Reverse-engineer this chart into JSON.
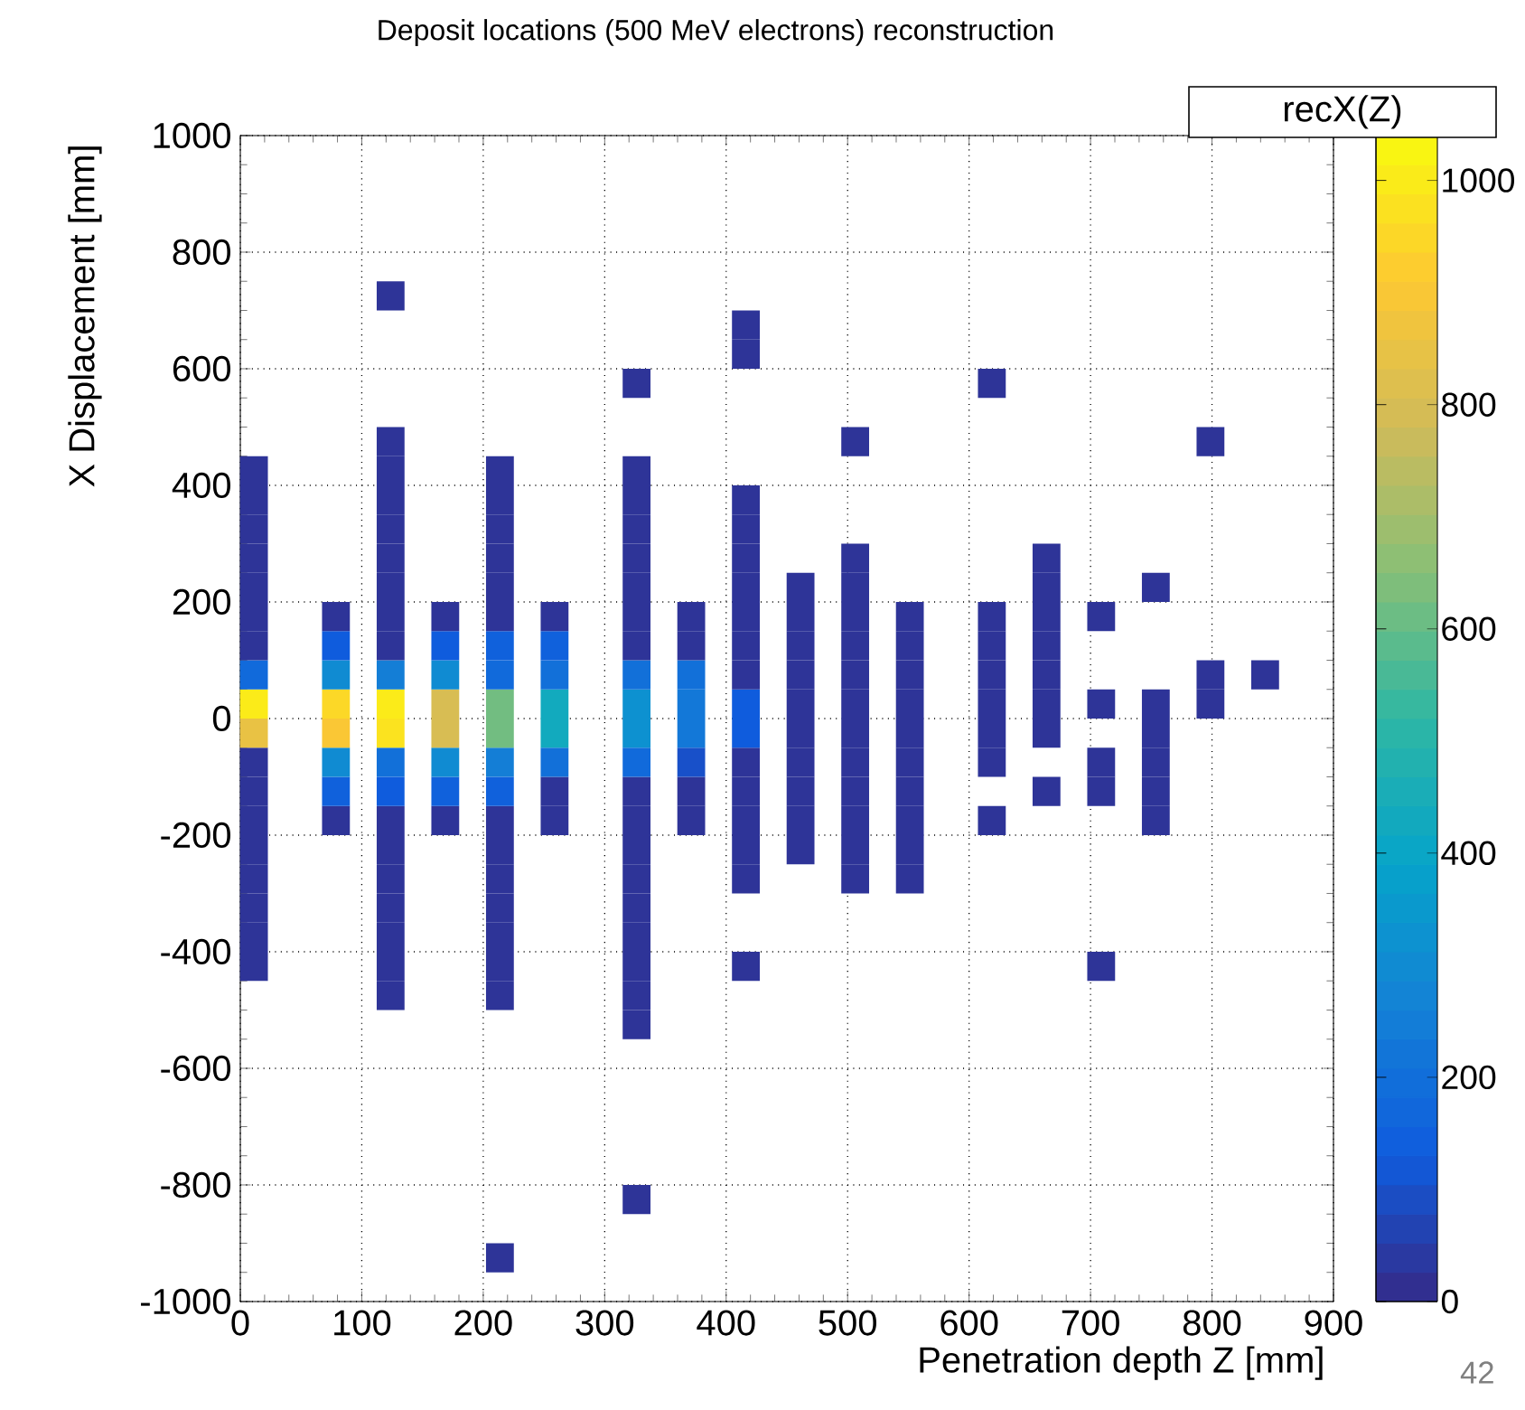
{
  "chart_data": {
    "type": "scatter",
    "title": "Deposit locations (500 MeV electrons) reconstruction",
    "xlabel": "Penetration depth Z [mm]",
    "ylabel": "X Displacement [mm]",
    "xlim": [
      0,
      900
    ],
    "xticks": [
      0,
      100,
      200,
      300,
      400,
      500,
      600,
      700,
      800,
      900
    ],
    "ylim": [
      -1000,
      1000
    ],
    "yticks": [
      -1000,
      -800,
      -600,
      -400,
      -200,
      0,
      200,
      400,
      600,
      800,
      1000
    ],
    "clim": [
      0,
      1040
    ],
    "cticks": [
      0,
      200,
      400,
      600,
      800,
      1000
    ],
    "grid": true,
    "marker": "square",
    "annotations": [
      "recX(Z)",
      "42"
    ],
    "x": [
      11.25,
      11.25,
      11.25,
      11.25,
      11.25,
      11.25,
      11.25,
      11.25,
      11.25,
      11.25,
      11.25,
      11.25,
      11.25,
      11.25,
      11.25,
      11.25,
      11.25,
      11.25,
      78.75,
      78.75,
      78.75,
      78.75,
      78.75,
      78.75,
      78.75,
      78.75,
      123.75,
      123.75,
      123.75,
      123.75,
      123.75,
      123.75,
      123.75,
      123.75,
      123.75,
      123.75,
      123.75,
      123.75,
      123.75,
      123.75,
      123.75,
      123.75,
      123.75,
      123.75,
      123.75,
      123.75,
      123.75,
      168.75,
      168.75,
      168.75,
      168.75,
      168.75,
      168.75,
      168.75,
      168.75,
      213.75,
      213.75,
      213.75,
      213.75,
      213.75,
      213.75,
      213.75,
      213.75,
      213.75,
      213.75,
      213.75,
      213.75,
      213.75,
      213.75,
      213.75,
      213.75,
      213.75,
      213.75,
      213.75,
      213.75,
      258.75,
      258.75,
      258.75,
      258.75,
      258.75,
      258.75,
      258.75,
      258.75,
      326.25,
      326.25,
      326.25,
      326.25,
      326.25,
      326.25,
      326.25,
      326.25,
      326.25,
      326.25,
      326.25,
      326.25,
      326.25,
      326.25,
      326.25,
      326.25,
      326.25,
      326.25,
      326.25,
      326.25,
      326.25,
      326.25,
      371.25,
      371.25,
      371.25,
      371.25,
      371.25,
      371.25,
      371.25,
      371.25,
      416.25,
      416.25,
      416.25,
      416.25,
      416.25,
      416.25,
      416.25,
      416.25,
      416.25,
      416.25,
      416.25,
      416.25,
      416.25,
      416.25,
      416.25,
      416.25,
      416.25,
      461.25,
      461.25,
      461.25,
      461.25,
      461.25,
      461.25,
      461.25,
      461.25,
      461.25,
      461.25,
      506.25,
      506.25,
      506.25,
      506.25,
      506.25,
      506.25,
      506.25,
      506.25,
      506.25,
      506.25,
      506.25,
      506.25,
      506.25,
      551.25,
      551.25,
      551.25,
      551.25,
      551.25,
      551.25,
      551.25,
      551.25,
      551.25,
      551.25,
      618.75,
      618.75,
      618.75,
      618.75,
      618.75,
      618.75,
      618.75,
      618.75,
      663.75,
      663.75,
      663.75,
      663.75,
      663.75,
      663.75,
      663.75,
      663.75,
      708.75,
      708.75,
      708.75,
      708.75,
      708.75,
      753.75,
      753.75,
      753.75,
      753.75,
      753.75,
      753.75,
      798.75,
      798.75,
      798.75,
      843.75
    ],
    "values": [
      -425,
      -375,
      -325,
      -275,
      -225,
      -175,
      -125,
      -75,
      -25,
      25,
      75,
      125,
      175,
      225,
      275,
      325,
      375,
      425,
      -175,
      -125,
      -75,
      -25,
      25,
      75,
      125,
      175,
      -475,
      -425,
      -375,
      -325,
      -275,
      -225,
      -175,
      -125,
      -75,
      -25,
      25,
      75,
      125,
      175,
      225,
      275,
      325,
      375,
      425,
      475,
      725,
      -175,
      -125,
      -75,
      -25,
      25,
      75,
      125,
      175,
      -925,
      -475,
      -425,
      -375,
      -325,
      -275,
      -225,
      -175,
      -125,
      -75,
      -25,
      25,
      75,
      125,
      175,
      225,
      275,
      325,
      375,
      425,
      -175,
      -125,
      -75,
      -25,
      25,
      75,
      125,
      175,
      -825,
      -525,
      -475,
      -425,
      -375,
      -325,
      -275,
      -225,
      -175,
      -125,
      -75,
      -25,
      25,
      75,
      125,
      175,
      225,
      275,
      325,
      375,
      425,
      575,
      -175,
      -125,
      -75,
      -25,
      25,
      75,
      125,
      175,
      -425,
      -275,
      -225,
      -175,
      -125,
      -75,
      -25,
      25,
      75,
      125,
      175,
      225,
      275,
      325,
      375,
      625,
      675,
      -225,
      -175,
      -125,
      -75,
      -25,
      25,
      75,
      125,
      175,
      225,
      -275,
      -225,
      -175,
      -125,
      -75,
      -25,
      25,
      75,
      125,
      175,
      225,
      275,
      475,
      -275,
      -225,
      -175,
      -125,
      -75,
      -25,
      25,
      75,
      125,
      175,
      -175,
      -75,
      -25,
      25,
      75,
      125,
      175,
      575,
      -125,
      -25,
      25,
      75,
      125,
      175,
      225,
      275,
      -425,
      -125,
      -75,
      25,
      175,
      -175,
      -125,
      -75,
      -25,
      25,
      225,
      25,
      75,
      475,
      75
    ],
    "cvalues": [
      25,
      25,
      25,
      25,
      25,
      25,
      25,
      25,
      850,
      1000,
      180,
      25,
      25,
      25,
      25,
      25,
      25,
      25,
      25,
      150,
      300,
      900,
      950,
      300,
      130,
      25,
      25,
      25,
      25,
      25,
      25,
      25,
      25,
      130,
      200,
      980,
      1000,
      250,
      25,
      25,
      25,
      25,
      25,
      25,
      25,
      25,
      25,
      25,
      150,
      300,
      800,
      800,
      300,
      130,
      25,
      25,
      25,
      25,
      25,
      25,
      25,
      25,
      25,
      150,
      250,
      620,
      620,
      180,
      150,
      25,
      25,
      25,
      25,
      25,
      25,
      25,
      25,
      200,
      430,
      430,
      200,
      150,
      25,
      25,
      25,
      25,
      25,
      25,
      25,
      25,
      25,
      25,
      25,
      180,
      320,
      320,
      200,
      25,
      25,
      25,
      25,
      25,
      25,
      25,
      25,
      25,
      25,
      100,
      230,
      230,
      200,
      25,
      25,
      25,
      25,
      25,
      25,
      25,
      25,
      130,
      130,
      25,
      25,
      25,
      25,
      25,
      25,
      25,
      25,
      25,
      25,
      25,
      25,
      25,
      25,
      25,
      25,
      25,
      25,
      25,
      25,
      25,
      25,
      25,
      25,
      25,
      25,
      25,
      25,
      25,
      25,
      25,
      25,
      25,
      25,
      25,
      25,
      25,
      25,
      25,
      25,
      25,
      25,
      25,
      25,
      25,
      25,
      25,
      25,
      25,
      25,
      25,
      25,
      25,
      25,
      25,
      25,
      25,
      25,
      25,
      25,
      25,
      25,
      25,
      25,
      25,
      25,
      25,
      25,
      25,
      25,
      25,
      25,
      25
    ]
  }
}
